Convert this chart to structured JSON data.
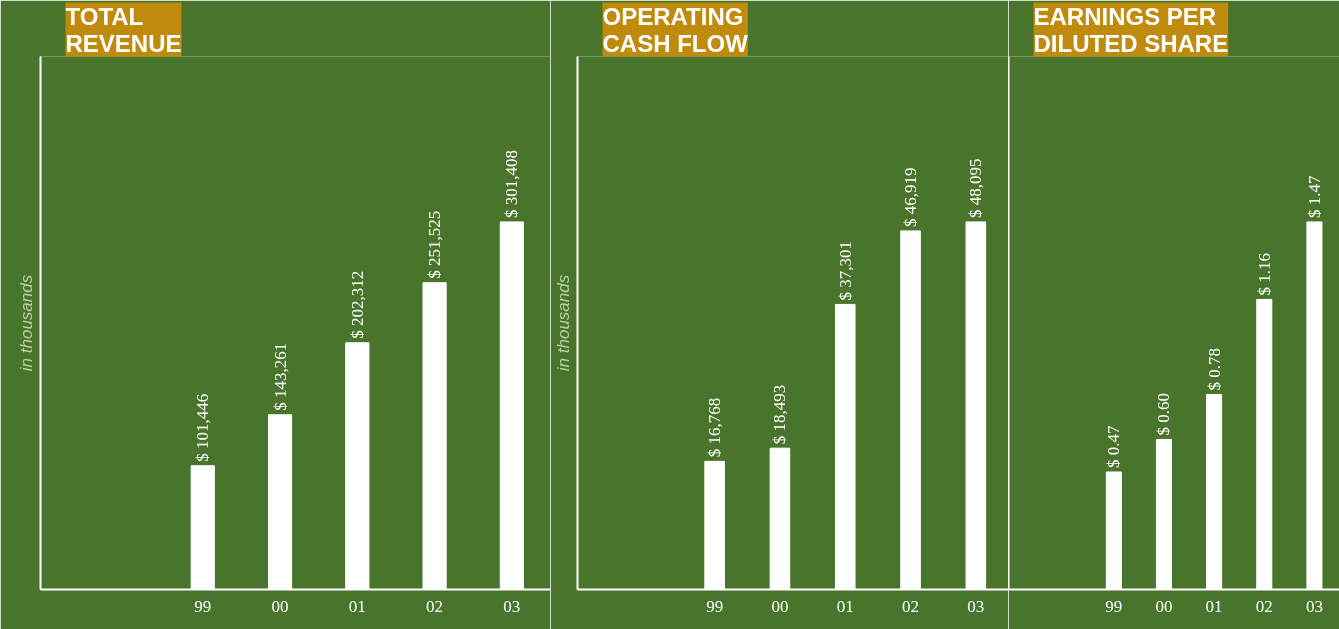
{
  "chart_data": [
    {
      "type": "bar",
      "title": "TOTAL\nREVENUE",
      "ylabel": "in thousands",
      "categories": [
        "99",
        "00",
        "01",
        "02",
        "03"
      ],
      "values": [
        101446,
        143261,
        202312,
        251525,
        301408
      ],
      "color": "#ffffff",
      "value_labels": [
        "$ 101,446",
        "$ 143,261",
        "$ 202,312",
        "$ 251,525",
        "$ 301,408"
      ],
      "tick_labels": "x"
    },
    {
      "type": "bar",
      "title": "OPERATING\nCASH FLOW",
      "ylabel": "in thousands",
      "categories": [
        "99",
        "00",
        "01",
        "02",
        "03"
      ],
      "values": [
        16768,
        18493,
        37301,
        46919,
        48095
      ],
      "color": "#ffffff",
      "value_labels": [
        "$ 16,768",
        "$ 18,493",
        "$ 37,301",
        "$ 46,919",
        "$ 48,095"
      ],
      "tick_labels": "x"
    },
    {
      "type": "bar",
      "title": "EARNINGS PER\nDILUTED SHARE",
      "categories": [
        "99",
        "00",
        "01",
        "02",
        "03"
      ],
      "values": [
        0.47,
        0.6,
        0.78,
        1.16,
        1.47
      ],
      "color": "#ffffff",
      "value_labels": [
        "$ 0.47",
        "$ 0.60",
        "$ 0.78",
        "$ 1.16",
        "$ 1.47"
      ],
      "tick_labels": "x"
    }
  ]
}
